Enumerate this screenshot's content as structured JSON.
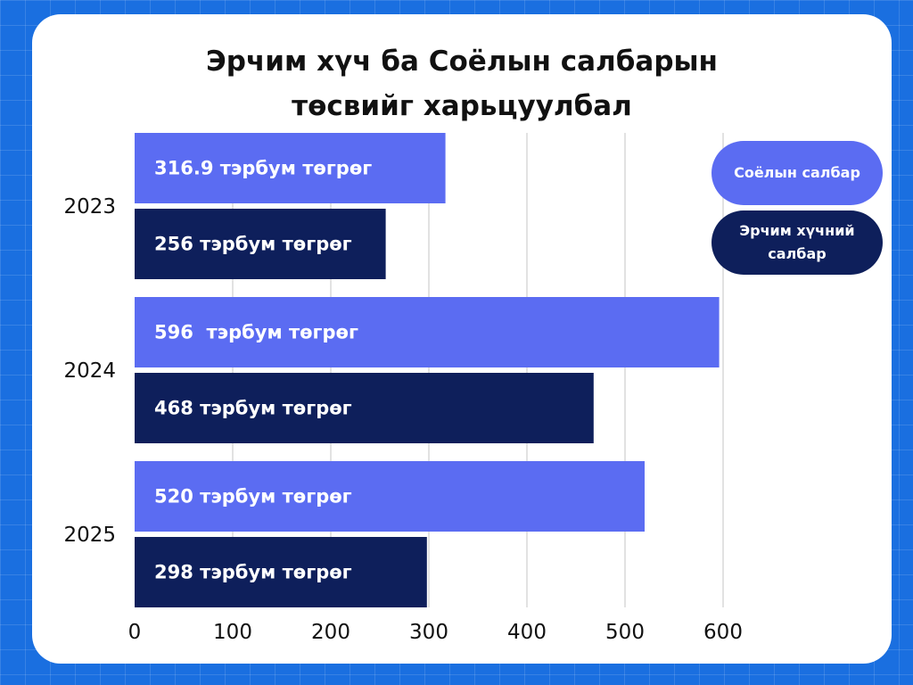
{
  "title_lines": [
    "Эрчим хүч ба Соёлын салбарын",
    "төсвийг харьцуулбал"
  ],
  "chart_data": {
    "type": "bar",
    "orientation": "horizontal",
    "title": "Эрчим хүч ба Соёлын салбарын төсвийг харьцуулбал",
    "categories": [
      "2023",
      "2024",
      "2025"
    ],
    "series": [
      {
        "name": "Соёлын салбар",
        "color": "#5b6cf2",
        "values": [
          316.9,
          596,
          520
        ],
        "labels": [
          "316.9 тэрбум төгрөг",
          "596  тэрбум төгрөг",
          "520 тэрбум төгрөг"
        ]
      },
      {
        "name": "Эрчим хүчний салбар",
        "color": "#0e1f5b",
        "values": [
          256,
          468,
          298
        ],
        "labels": [
          "256 тэрбум төгрөг",
          "468 тэрбум төгрөг",
          "298 тэрбум төгрөг"
        ]
      }
    ],
    "xlim": [
      0,
      600
    ],
    "xticks": [
      0,
      100,
      200,
      300,
      400,
      500,
      600
    ],
    "xlabel": "",
    "ylabel": "",
    "grid": "vertical",
    "legend_position": "top-right"
  }
}
